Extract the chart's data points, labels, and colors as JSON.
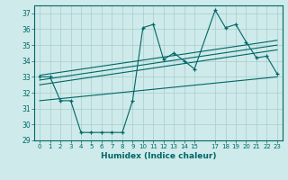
{
  "title": "",
  "xlabel": "Humidex (Indice chaleur)",
  "bg_color": "#ceeaea",
  "grid_color": "#aacccc",
  "line_color": "#006666",
  "xlim": [
    -0.5,
    23.5
  ],
  "ylim": [
    29,
    37.5
  ],
  "yticks": [
    29,
    30,
    31,
    32,
    33,
    34,
    35,
    36,
    37
  ],
  "xtick_positions": [
    0,
    1,
    2,
    3,
    4,
    5,
    6,
    7,
    8,
    9,
    10,
    11,
    12,
    13,
    14,
    15,
    17,
    18,
    19,
    20,
    21,
    22,
    23
  ],
  "xtick_labels": [
    "0",
    "1",
    "2",
    "3",
    "4",
    "5",
    "6",
    "7",
    "8",
    "9",
    "10",
    "11",
    "12",
    "13",
    "14",
    "15",
    "17",
    "18",
    "19",
    "20",
    "21",
    "22",
    "23"
  ],
  "main_x": [
    0,
    1,
    2,
    3,
    4,
    5,
    6,
    7,
    8,
    9,
    10,
    11,
    12,
    13,
    14,
    15,
    17,
    18,
    19,
    20,
    21,
    22,
    23
  ],
  "main_y": [
    33.0,
    33.0,
    31.5,
    31.5,
    29.5,
    29.5,
    29.5,
    29.5,
    29.5,
    31.5,
    36.1,
    36.3,
    34.1,
    34.5,
    34.0,
    33.5,
    37.2,
    36.1,
    36.3,
    35.2,
    34.2,
    34.3,
    33.2
  ],
  "trend_lines": [
    {
      "x0": 0,
      "y0": 33.1,
      "x1": 23,
      "y1": 35.3
    },
    {
      "x0": 0,
      "y0": 32.8,
      "x1": 23,
      "y1": 35.0
    },
    {
      "x0": 0,
      "y0": 32.5,
      "x1": 23,
      "y1": 34.7
    },
    {
      "x0": 0,
      "y0": 31.5,
      "x1": 23,
      "y1": 33.0
    }
  ]
}
